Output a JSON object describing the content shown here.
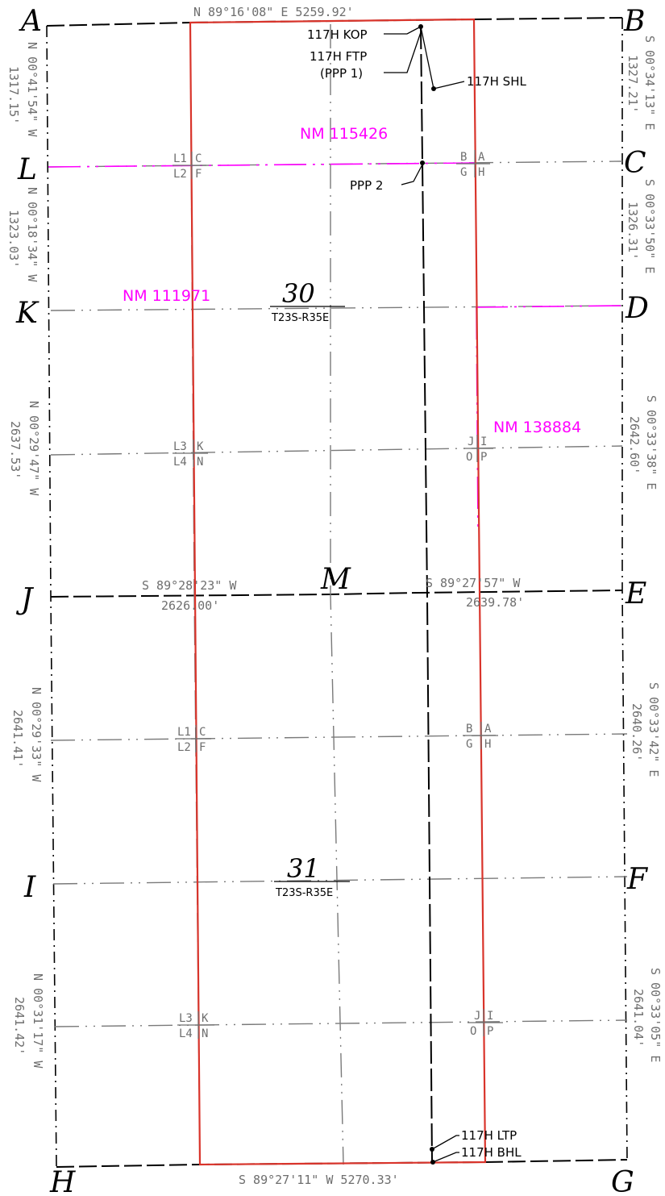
{
  "corners": {
    "A": "A",
    "B": "B",
    "C": "C",
    "D": "D",
    "E": "E",
    "F": "F",
    "G": "G",
    "H": "H",
    "I": "I",
    "J": "J",
    "K": "K",
    "L": "L",
    "M": "M"
  },
  "sections": [
    {
      "number": "30",
      "township": "T23S-R35E"
    },
    {
      "number": "31",
      "township": "T23S-R35E"
    }
  ],
  "bearings": {
    "north_line": "N 89°16'08\" E  5259.92'",
    "south_line": "S 89°27'11\" W  5270.33'",
    "mid_west": [
      "S 89°28'23\" W",
      "2626.00'"
    ],
    "mid_east": [
      "S 89°27'57\" W",
      "2639.78'"
    ],
    "west_lines": [
      [
        "N 00°41'54\" W",
        "1317.15'"
      ],
      [
        "N 00°18'34\" W",
        "1323.03'"
      ],
      [
        "N 00°29'47\" W",
        "2637.53'"
      ],
      [
        "N 00°29'33\" W",
        "2641.41'"
      ],
      [
        "N 00°31'17\" W",
        "2641.42'"
      ]
    ],
    "east_lines": [
      [
        "S 00°34'13\" E",
        "1327.21'"
      ],
      [
        "S 00°33'50\" E",
        "1326.31'"
      ],
      [
        "S 00°33'38\" E",
        "2642.60'"
      ],
      [
        "S 00°33'42\" E",
        "2640.26'"
      ],
      [
        "S 00°33'05\" E",
        "2641.04'"
      ]
    ]
  },
  "leases": {
    "nm1": "NM 115426",
    "nm2": "NM 111971",
    "nm3": "NM 138884"
  },
  "well_labels": {
    "kop": "117H KOP",
    "ftp": "117H FTP",
    "ppp1": "(PPP 1)",
    "shl": "117H SHL",
    "ppp2": "PPP 2",
    "ltp": "117H LTP",
    "bhl": "117H BHL"
  },
  "lots": {
    "set1_left": {
      "a": "L1",
      "b": "C",
      "c": "L2",
      "d": "F"
    },
    "set1_right": {
      "a": "B",
      "b": "A",
      "c": "G",
      "d": "H"
    },
    "set2_left": {
      "a": "L3",
      "b": "K",
      "c": "L4",
      "d": "N"
    },
    "set2_right": {
      "a": "J",
      "b": "I",
      "c": "O",
      "d": "P"
    },
    "set3_left": {
      "a": "L1",
      "b": "C",
      "c": "L2",
      "d": "F"
    },
    "set3_right": {
      "a": "B",
      "b": "A",
      "c": "G",
      "d": "H"
    },
    "set4_left": {
      "a": "L3",
      "b": "K",
      "c": "L4",
      "d": "N"
    },
    "set4_right": {
      "a": "J",
      "b": "I",
      "c": "O",
      "d": "P"
    }
  },
  "colors": {
    "boundary": "#000000",
    "spacing_unit": "#d9342b",
    "lease_line": "#ff00ff",
    "quarter_line": "#7a7a7a"
  }
}
